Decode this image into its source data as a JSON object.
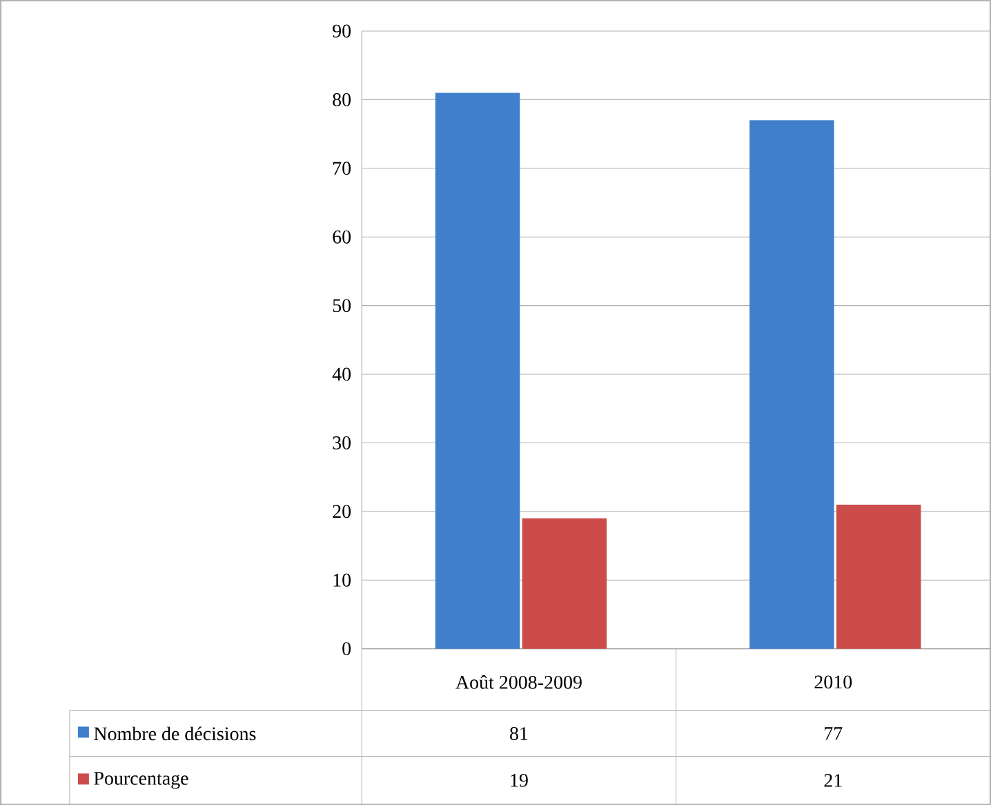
{
  "chart_data": {
    "type": "bar",
    "categories": [
      "Août 2008-2009",
      "2010"
    ],
    "series": [
      {
        "name": "Nombre de décisions",
        "color": "#3f7fcc",
        "values": [
          81,
          77
        ]
      },
      {
        "name": "Pourcentage",
        "color": "#cc4b4b",
        "values": [
          19,
          21
        ]
      }
    ],
    "ylim": [
      0,
      90
    ],
    "yticks": [
      0,
      10,
      20,
      30,
      40,
      50,
      60,
      70,
      80,
      90
    ],
    "grid": "y",
    "legend": "bottom",
    "data_labels": true
  }
}
